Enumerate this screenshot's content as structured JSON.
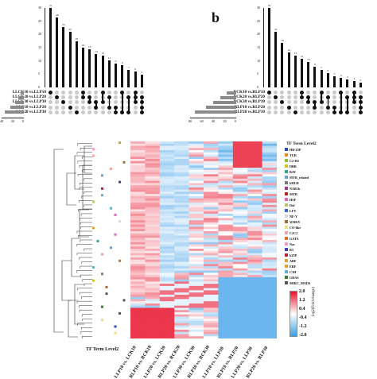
{
  "panel_a": {
    "bar_values": [
      100,
      88,
      76,
      70,
      58,
      50,
      48,
      42,
      40,
      34,
      30,
      28,
      22,
      20,
      16
    ],
    "bar_labels": [
      "31",
      "28",
      "24",
      "22",
      "18",
      "16",
      "15",
      "13",
      "13",
      "11",
      "9",
      "9",
      "7",
      "6",
      "5"
    ],
    "y_ticks": [
      "0",
      "5",
      "10",
      "15",
      "20",
      "25",
      "30"
    ],
    "sets": [
      "LLCK10 vs.LLP10",
      "LLCK20 vs.LLP20",
      "LLCK30 vs.LLP30",
      "LLP10 vs.LLP20",
      "LLP20 vs.LLP30"
    ],
    "set_sizes": [
      0.15,
      0.25,
      0.4,
      0.6,
      0.85
    ],
    "x_ticks": [
      "40",
      "20",
      "0"
    ]
  },
  "panel_b": {
    "letter": "b",
    "bar_values": [
      100,
      70,
      56,
      44,
      40,
      36,
      32,
      26,
      22,
      18,
      14,
      12,
      10,
      8,
      6
    ],
    "bar_labels": [
      "32",
      "22",
      "18",
      "14",
      "13",
      "12",
      "10",
      "8",
      "7",
      "6",
      "5",
      "4",
      "3",
      "3",
      "2"
    ],
    "y_ticks": [
      "0",
      "5",
      "10",
      "15",
      "20",
      "25",
      "30"
    ],
    "sets": [
      "RCK10 vs.RLP10",
      "RCK20 vs.RLP20",
      "RCK30 vs.RLP30",
      "RLP10 vs.RLP20",
      "RLP20 vs.RLP30"
    ],
    "set_sizes": [
      0.2,
      0.35,
      0.5,
      0.65,
      0.9
    ],
    "x_ticks": [
      "80",
      "60",
      "40",
      "20",
      "0"
    ]
  },
  "heatmap": {
    "columns": [
      "LLP10 vs. LCK10",
      "RLP10 vs. RCK10",
      "LLP20 vs. LCK20",
      "RLP20 vs. RCK20",
      "LLP30 vs. LCK30",
      "RLP30 vs. RCK30",
      "LLP10 vs. LLP20",
      "RLP10 vs. RLP20",
      "LLP20 vs. LLP30",
      "RLP20 vs. RLP30"
    ],
    "row_label": "TF Term Level2",
    "legend_title": "TF Term Level2",
    "legend": [
      {
        "name": "HB-ZIP",
        "color": "#2b4bb3"
      },
      {
        "name": "TUB",
        "color": "#e58a1f"
      },
      {
        "name": "C2-H2",
        "color": "#8fbf3a"
      },
      {
        "name": "DBB",
        "color": "#d4c21e"
      },
      {
        "name": "BAV",
        "color": "#3aa38b"
      },
      {
        "name": "MYB_related",
        "color": "#6f9fd8"
      },
      {
        "name": "bHLH",
        "color": "#7a7a7a"
      },
      {
        "name": "NAB1b",
        "color": "#9b3d8f"
      },
      {
        "name": "MYB",
        "color": "#b02424"
      },
      {
        "name": "HSF",
        "color": "#d46ab8"
      },
      {
        "name": "Dof",
        "color": "#c0c070"
      },
      {
        "name": "LFY",
        "color": "#3b66c9"
      },
      {
        "name": "NF-Y",
        "color": "#d9d9d9"
      },
      {
        "name": "WRKY",
        "color": "#a36a30"
      },
      {
        "name": "CO-like",
        "color": "#eedc82"
      },
      {
        "name": "C2C2",
        "color": "#f2a5a5"
      },
      {
        "name": "GATA",
        "color": "#e06a2c"
      },
      {
        "name": "Nac",
        "color": "#f29ac6"
      },
      {
        "name": "B3",
        "color": "#3f3fb3"
      },
      {
        "name": "bZIP",
        "color": "#c02040"
      },
      {
        "name": "ARF",
        "color": "#d9a13a"
      },
      {
        "name": "ERF",
        "color": "#e8a02c"
      },
      {
        "name": "C3H",
        "color": "#5fb2c9"
      },
      {
        "name": "GRAS",
        "color": "#3b7a3b"
      },
      {
        "name": "MIKC_MADS",
        "color": "#555555"
      }
    ],
    "colorbar_ticks": [
      "2.0",
      "1.2",
      "0.4",
      "-0.4",
      "-1.2",
      "-2.0"
    ],
    "colorbar_title": "log2(Fold change)"
  },
  "colors": {
    "high": "#e8132b",
    "mid": "#ffffff",
    "low": "#3a9ee8"
  }
}
